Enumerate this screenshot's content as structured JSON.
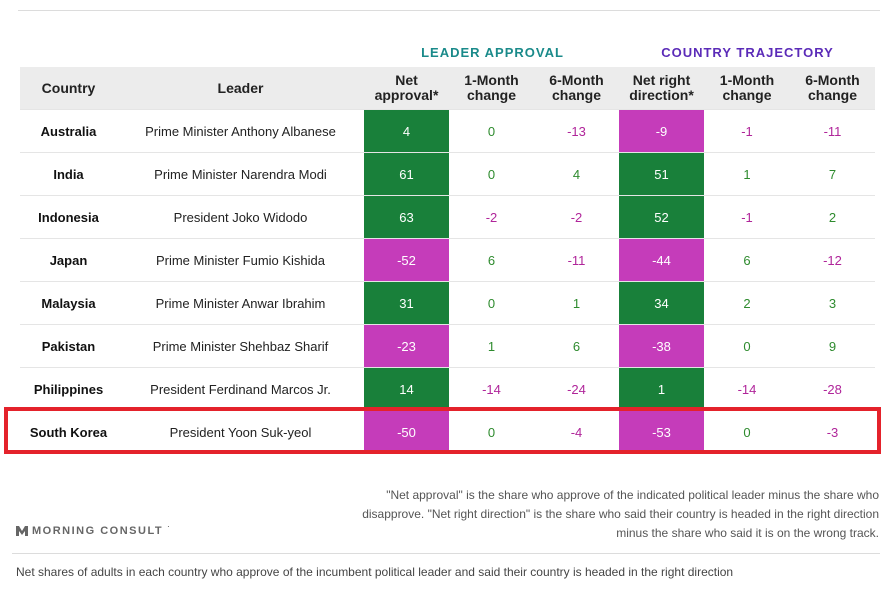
{
  "group_headers": {
    "leader_approval": "LEADER APPROVAL",
    "country_trajectory": "COUNTRY TRAJECTORY"
  },
  "columns": {
    "country": "Country",
    "leader": "Leader",
    "net_approval": [
      "Net",
      "approval*"
    ],
    "approval_1m": [
      "1-Month",
      "change"
    ],
    "approval_6m": [
      "6-Month",
      "change"
    ],
    "net_right": [
      "Net right",
      "direction*"
    ],
    "direction_1m": [
      "1-Month",
      "change"
    ],
    "direction_6m": [
      "6-Month",
      "change"
    ]
  },
  "chart_data": {
    "type": "table",
    "title": "Net shares of adults in each country who approve of the incumbent political leader and said their country is headed in the right direction",
    "highlighted_row": "South Korea",
    "rows": [
      {
        "country": "Australia",
        "leader": "Prime Minister Anthony Albanese",
        "net_approval": 4,
        "approval_1m": 0,
        "approval_6m": -13,
        "net_right": -9,
        "direction_1m": -1,
        "direction_6m": -11
      },
      {
        "country": "India",
        "leader": "Prime Minister Narendra Modi",
        "net_approval": 61,
        "approval_1m": 0,
        "approval_6m": 4,
        "net_right": 51,
        "direction_1m": 1,
        "direction_6m": 7
      },
      {
        "country": "Indonesia",
        "leader": "President Joko Widodo",
        "net_approval": 63,
        "approval_1m": -2,
        "approval_6m": -2,
        "net_right": 52,
        "direction_1m": -1,
        "direction_6m": 2
      },
      {
        "country": "Japan",
        "leader": "Prime Minister Fumio Kishida",
        "net_approval": -52,
        "approval_1m": 6,
        "approval_6m": -11,
        "net_right": -44,
        "direction_1m": 6,
        "direction_6m": -12
      },
      {
        "country": "Malaysia",
        "leader": "Prime Minister Anwar Ibrahim",
        "net_approval": 31,
        "approval_1m": 0,
        "approval_6m": 1,
        "net_right": 34,
        "direction_1m": 2,
        "direction_6m": 3
      },
      {
        "country": "Pakistan",
        "leader": "Prime Minister Shehbaz Sharif",
        "net_approval": -23,
        "approval_1m": 1,
        "approval_6m": 6,
        "net_right": -38,
        "direction_1m": 0,
        "direction_6m": 9
      },
      {
        "country": "Philippines",
        "leader": "President Ferdinand Marcos Jr.",
        "net_approval": 14,
        "approval_1m": -14,
        "approval_6m": -24,
        "net_right": 1,
        "direction_1m": -14,
        "direction_6m": -28
      },
      {
        "country": "South Korea",
        "leader": "President Yoon Suk-yeol",
        "net_approval": -50,
        "approval_1m": 0,
        "approval_6m": -4,
        "net_right": -53,
        "direction_1m": 0,
        "direction_6m": -3
      }
    ]
  },
  "footnote": "\"Net approval\" is the share who approve of the indicated political leader minus the share who disapprove. \"Net right direction\" is the share who said their country is headed in the right direction minus the share who said it is on the wrong track.",
  "logo": {
    "text": "MORNING CONSULT",
    "mark": "˙",
    "icon": "morning-consult-logo-icon"
  },
  "caption": "Net shares of adults in each country who approve of the incumbent political leader and said their country is headed in the right direction",
  "colors": {
    "positive_fill": "#19803a",
    "negative_fill": "#c53cba",
    "positive_text": "#2e8b2e",
    "negative_text": "#b0259a",
    "approval_header": "#1a8a8a",
    "trajectory_header": "#5b2bb8",
    "highlight": "#e4222b"
  }
}
